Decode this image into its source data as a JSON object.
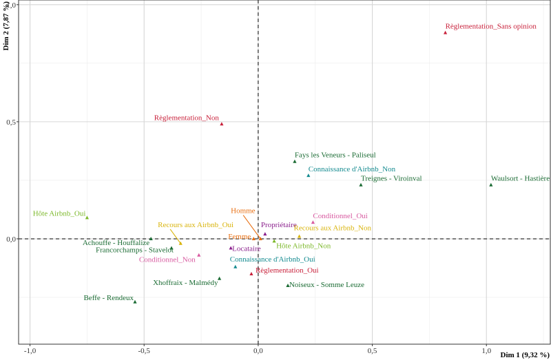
{
  "chart_data": {
    "type": "scatter",
    "title": "",
    "xlabel": "Dim 1 (9,32 %)",
    "ylabel": "Dim 2 (7,87 %)",
    "xlim": [
      -1.05,
      1.28
    ],
    "ylim": [
      -0.45,
      1.02
    ],
    "x_ticks": [
      -1.0,
      -0.5,
      0.0,
      0.5,
      1.0
    ],
    "x_tick_labels": [
      "-1,0",
      "-0,5",
      "0,0",
      "0,5",
      "1,0"
    ],
    "y_ticks": [
      0.0,
      0.5,
      1.0
    ],
    "y_tick_labels": [
      "0,0",
      "0,5",
      "1,0"
    ],
    "grid": true,
    "reference_lines": {
      "x": 0,
      "y": 0
    },
    "colors": {
      "localisation": "#1a6b33",
      "reglementation": "#c8203a",
      "connaissance": "#138a8f",
      "hote": "#7cb82a",
      "recours": "#d9b40c",
      "sexe": "#e86f12",
      "statut": "#8a1f8c",
      "conditionnel": "#d85aa0"
    },
    "points": [
      {
        "label": "Règlementation_Sans opinion",
        "x": 0.82,
        "y": 0.88,
        "group": "reglementation"
      },
      {
        "label": "Règlementation_Non",
        "x": -0.16,
        "y": 0.49,
        "group": "reglementation"
      },
      {
        "label": "Règlementation_Oui",
        "x": -0.03,
        "y": -0.15,
        "group": "reglementation"
      },
      {
        "label": "Fays les Veneurs - Paliseul",
        "x": 0.16,
        "y": 0.33,
        "group": "localisation"
      },
      {
        "label": "Connaissance d'Airbnb_Non",
        "x": 0.22,
        "y": 0.27,
        "group": "connaissance"
      },
      {
        "label": "Treignes - Viroinval",
        "x": 0.45,
        "y": 0.23,
        "group": "localisation"
      },
      {
        "label": "Waulsort - Hastière",
        "x": 1.02,
        "y": 0.23,
        "group": "localisation"
      },
      {
        "label": "Hôte Airbnb_Oui",
        "x": -0.75,
        "y": 0.09,
        "group": "hote"
      },
      {
        "label": "Homme",
        "x": 0.01,
        "y": 0.0,
        "group": "sexe"
      },
      {
        "label": "Conditionnel_Oui",
        "x": 0.24,
        "y": 0.07,
        "group": "conditionnel"
      },
      {
        "label": "Propriétaire",
        "x": 0.03,
        "y": 0.02,
        "group": "statut"
      },
      {
        "label": "Recours aux Airbnb_Non",
        "x": 0.18,
        "y": 0.01,
        "group": "recours"
      },
      {
        "label": "Recours aux Airbnb_Oui",
        "x": -0.34,
        "y": -0.02,
        "group": "recours"
      },
      {
        "label": "Femme",
        "x": -0.02,
        "y": 0.0,
        "group": "sexe"
      },
      {
        "label": "Hôte Airbnb_Non",
        "x": 0.07,
        "y": -0.01,
        "group": "hote"
      },
      {
        "label": "Achouffe - Houffalize",
        "x": -0.47,
        "y": 0.0,
        "group": "localisation"
      },
      {
        "label": "Locataire",
        "x": -0.12,
        "y": -0.04,
        "group": "statut"
      },
      {
        "label": "Francorchamps - Stavelot",
        "x": -0.38,
        "y": -0.04,
        "group": "localisation"
      },
      {
        "label": "Conditionnel_Non",
        "x": -0.26,
        "y": -0.07,
        "group": "conditionnel"
      },
      {
        "label": "Connaissance d'Airbnb_Oui",
        "x": -0.1,
        "y": -0.12,
        "group": "connaissance"
      },
      {
        "label": "Xhoffraix - Malmédy",
        "x": -0.17,
        "y": -0.17,
        "group": "localisation"
      },
      {
        "label": "Noiseux - Somme Leuze",
        "x": 0.13,
        "y": -0.2,
        "group": "localisation"
      },
      {
        "label": "Beffe - Rendeux",
        "x": -0.54,
        "y": -0.27,
        "group": "localisation"
      }
    ]
  }
}
